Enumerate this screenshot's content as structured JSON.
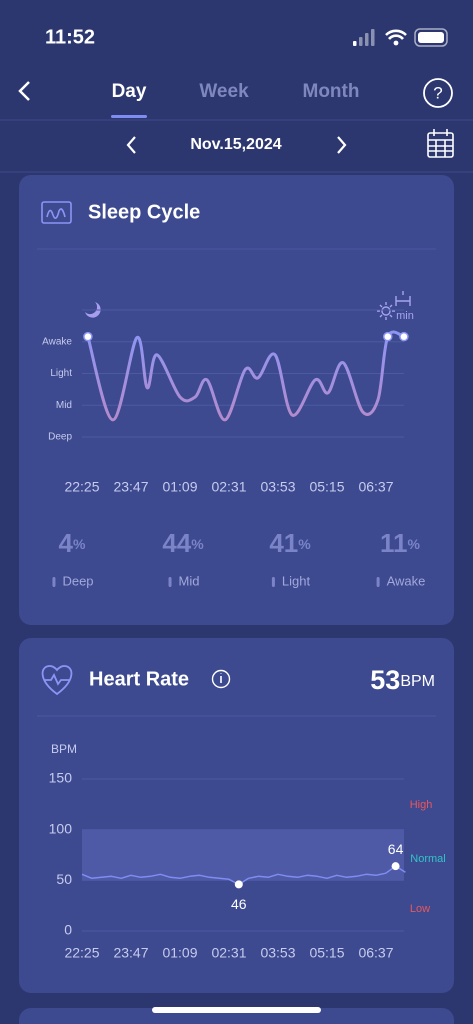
{
  "status_bar": {
    "time": "11:52"
  },
  "tabs": [
    {
      "label": "Day",
      "active": true
    },
    {
      "label": "Week",
      "active": false
    },
    {
      "label": "Month",
      "active": false
    }
  ],
  "date": "Nov.15,2024",
  "help": "?",
  "sleep_card": {
    "title": "Sleep Cycle",
    "end_label": "min",
    "stages": [
      {
        "value": 4,
        "unit": "%",
        "name": "Deep"
      },
      {
        "value": 44,
        "unit": "%",
        "name": "Mid"
      },
      {
        "value": 41,
        "unit": "%",
        "name": "Light"
      },
      {
        "value": 11,
        "unit": "%",
        "name": "Awake"
      }
    ]
  },
  "heart_card": {
    "title": "Heart Rate",
    "current": 53,
    "unit": "BPM"
  },
  "chart_data": [
    {
      "type": "line",
      "color": "#8f93f0",
      "x": [
        0.12,
        0.63,
        1.12,
        1.33,
        1.53,
        2.0,
        2.31,
        2.55,
        2.92,
        3.33,
        3.59,
        3.94,
        4.29,
        4.76,
        5.02,
        5.33,
        5.73,
        6.04,
        6.24,
        6.57
      ],
      "values": [
        3.16,
        0.54,
        3.13,
        1.55,
        2.59,
        1.26,
        1.26,
        1.8,
        0.54,
        2.12,
        1.86,
        2.59,
        0.69,
        1.8,
        1.39,
        2.34,
        0.79,
        1.17,
        3.16,
        3.16
      ],
      "xlim": [
        0,
        6.6
      ],
      "xticks": [
        {
          "value": 0,
          "label": "22:25"
        },
        {
          "value": 1,
          "label": "23:47"
        },
        {
          "value": 2,
          "label": "01:09"
        },
        {
          "value": 3,
          "label": "02:31"
        },
        {
          "value": 4,
          "label": "03:53"
        },
        {
          "value": 5,
          "label": "05:15"
        },
        {
          "value": 6,
          "label": "06:37"
        }
      ],
      "ylim": [
        0,
        4
      ],
      "yticks": [
        {
          "value": 0,
          "label": "Deep"
        },
        {
          "value": 1,
          "label": "Mid"
        },
        {
          "value": 2,
          "label": "Light"
        },
        {
          "value": 3,
          "label": "Awake"
        }
      ],
      "grid": true
    },
    {
      "type": "line",
      "color": "#7f8cf2",
      "y_label": "BPM",
      "x": [
        0,
        0.2,
        0.4,
        0.6,
        0.8,
        1.0,
        1.2,
        1.4,
        1.6,
        1.8,
        2.0,
        2.2,
        2.4,
        2.6,
        2.8,
        3.0,
        3.2,
        3.4,
        3.6,
        3.8,
        4.0,
        4.2,
        4.4,
        4.6,
        4.8,
        5.0,
        5.2,
        5.4,
        5.6,
        5.8,
        6.0,
        6.2,
        6.4,
        6.6
      ],
      "values": [
        56,
        52,
        53,
        54,
        52,
        55,
        53,
        54,
        56,
        53,
        52,
        54,
        55,
        53,
        52,
        51,
        46,
        52,
        54,
        53,
        56,
        54,
        53,
        55,
        54,
        52,
        55,
        53,
        54,
        56,
        55,
        57,
        64,
        58
      ],
      "labeled_points": [
        16,
        32
      ],
      "xlim": [
        0,
        6.6
      ],
      "xticks": [
        {
          "value": 0,
          "label": "22:25"
        },
        {
          "value": 1,
          "label": "23:47"
        },
        {
          "value": 2,
          "label": "01:09"
        },
        {
          "value": 3,
          "label": "02:31"
        },
        {
          "value": 4,
          "label": "03:53"
        },
        {
          "value": 5,
          "label": "05:15"
        },
        {
          "value": 6,
          "label": "06:37"
        }
      ],
      "ylim": [
        0,
        150
      ],
      "yticks": [
        0,
        50,
        100,
        150
      ],
      "bands": [
        {
          "name": "High",
          "color": "#e8575e"
        },
        {
          "name": "Normal",
          "from": 50,
          "to": 100,
          "color": "#33c3c9"
        },
        {
          "name": "Low",
          "color": "#e8575e"
        }
      ]
    }
  ]
}
